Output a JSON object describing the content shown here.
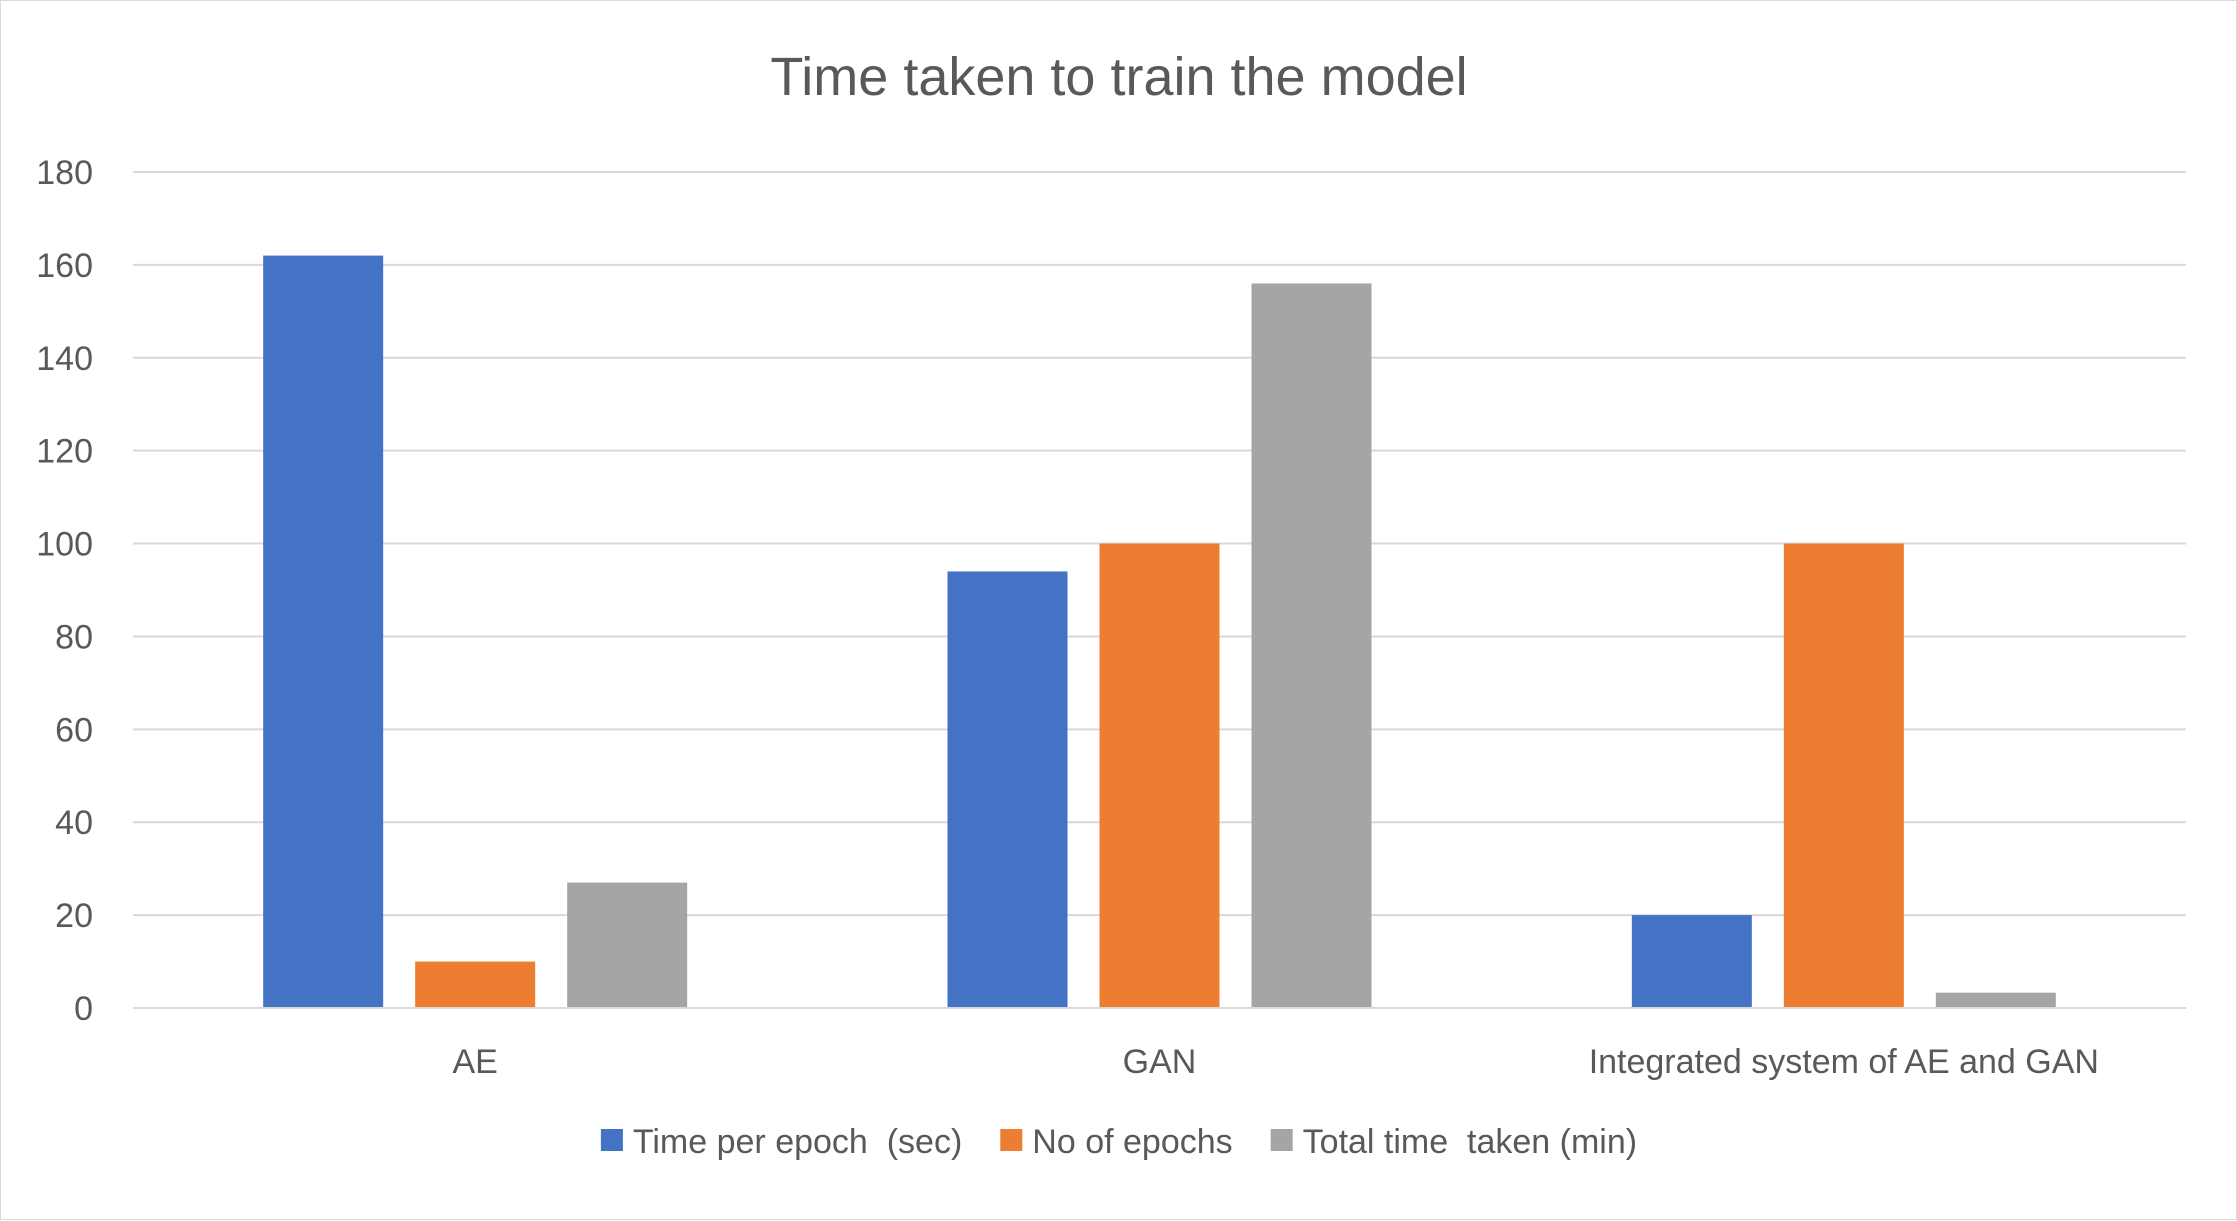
{
  "chart_data": {
    "type": "bar",
    "title": "Time taken to train the model",
    "xlabel": "",
    "ylabel": "",
    "categories": [
      "AE",
      "GAN",
      "Integrated system of AE and GAN"
    ],
    "series": [
      {
        "name": "Time per epoch  (sec)",
        "color": "#4472c4",
        "values": [
          162,
          94,
          20
        ]
      },
      {
        "name": "No of epochs",
        "color": "#ed7d31",
        "values": [
          10,
          100,
          100
        ]
      },
      {
        "name": "Total time  taken (min)",
        "color": "#a5a5a5",
        "values": [
          27,
          156,
          3.3
        ]
      }
    ],
    "ylim": [
      0,
      180
    ],
    "yticks": [
      0,
      20,
      40,
      60,
      80,
      100,
      120,
      140,
      160,
      180
    ],
    "grid": true,
    "gridColor": "#d9d9d9",
    "legend_position": "bottom"
  }
}
